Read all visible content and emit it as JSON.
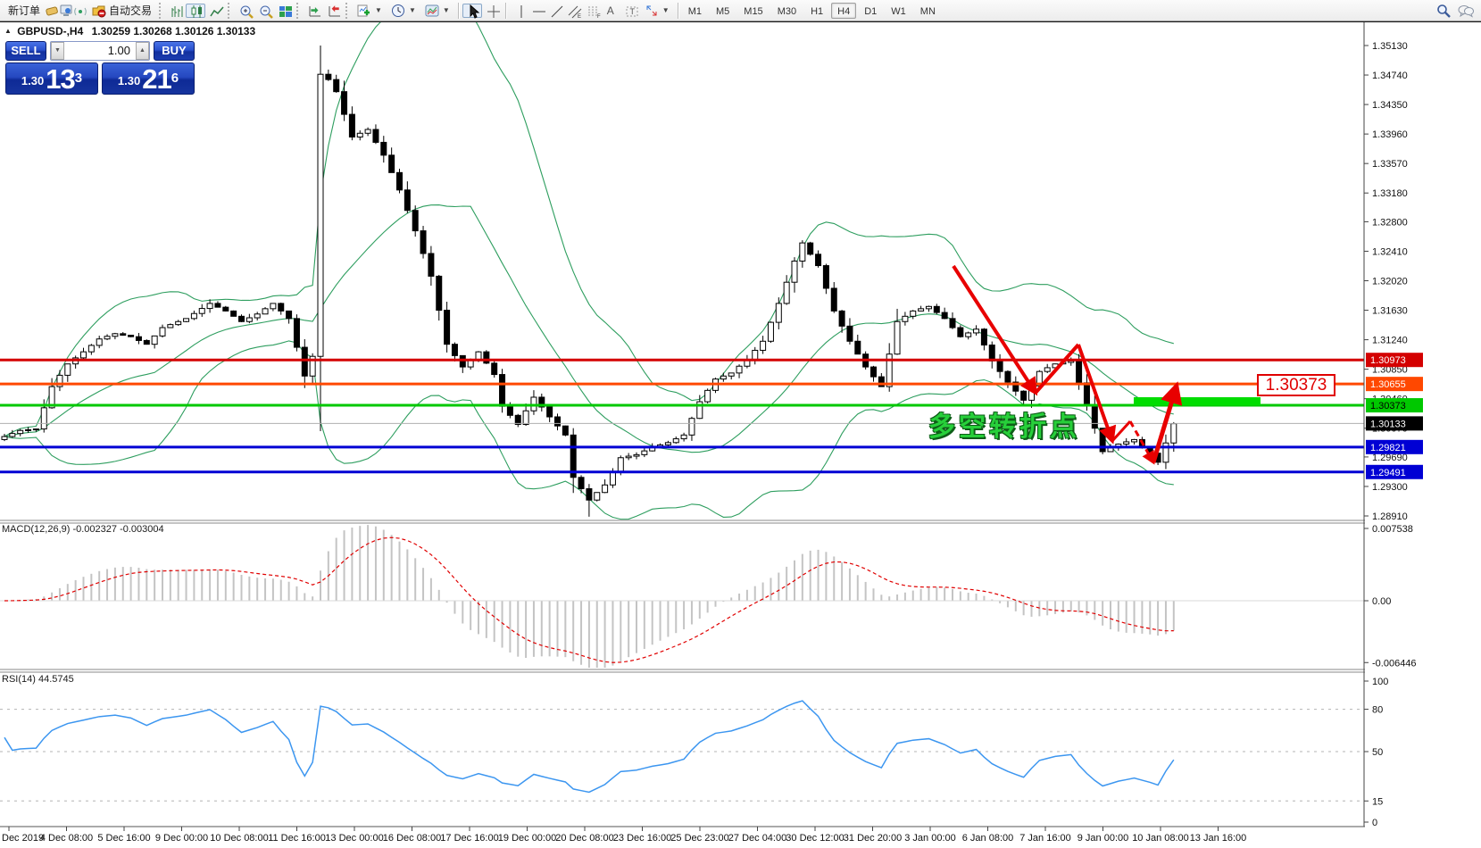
{
  "toolbar": {
    "new_order_label": "新订单",
    "auto_trading_label": "自动交易",
    "icons": [
      "new-order",
      "eraser",
      "profile-terminal",
      "signal",
      "auto-trading",
      "bar-chart",
      "candlestick-chart",
      "line-chart",
      "zoom-in",
      "zoom-out",
      "tile-windows",
      "auto-scroll",
      "chart-shift",
      "add-indicator",
      "period",
      "template",
      "cursor",
      "crosshair",
      "vertical-line",
      "horizontal-line",
      "trendline",
      "equidistant-channel",
      "fibonacci",
      "text",
      "text-label",
      "arrows",
      "search",
      "chat"
    ],
    "timeframes": [
      "M1",
      "M5",
      "M15",
      "M30",
      "H1",
      "H4",
      "D1",
      "W1",
      "MN"
    ],
    "active_timeframe": "H4"
  },
  "chart_header": {
    "symbol_title": "GBPUSD-,H4",
    "ohlc": "1.30259 1.30268 1.30126 1.30133"
  },
  "trade_panel": {
    "sell_label": "SELL",
    "buy_label": "BUY",
    "volume": "1.00",
    "sell_price_small": "1.30",
    "sell_price_big": "13",
    "sell_price_sup": "3",
    "buy_price_small": "1.30",
    "buy_price_big": "21",
    "buy_price_sup": "6"
  },
  "indicator_labels": {
    "macd": "MACD(12,26,9) -0.002327 -0.003004",
    "rsi": "RSI(14) 44.5745"
  },
  "annotations": {
    "turning_point_text": "多空转折点",
    "price_callout": "1.30373"
  },
  "axes": {
    "price_ticks": [
      "1.35130",
      "1.34740",
      "1.34350",
      "1.33960",
      "1.33570",
      "1.33180",
      "1.32800",
      "1.32410",
      "1.32020",
      "1.31630",
      "1.31240",
      "1.30850",
      "1.30460",
      "1.30070",
      "1.29690",
      "1.29300",
      "1.28910"
    ],
    "macd_ticks": [
      {
        "v": 0.007538,
        "label": "0.007538"
      },
      {
        "v": 0,
        "label": "0.00"
      },
      {
        "v": -0.006446,
        "label": "-0.006446"
      }
    ],
    "rsi_ticks": [
      {
        "v": 100,
        "label": "100",
        "dashed": false
      },
      {
        "v": 80,
        "label": "80",
        "dashed": true
      },
      {
        "v": 50,
        "label": "50",
        "dashed": true
      },
      {
        "v": 15,
        "label": "15",
        "dashed": true
      },
      {
        "v": 0,
        "label": "0",
        "dashed": false
      }
    ],
    "date_labels": [
      "Dec 2019",
      "4 Dec 08:00",
      "5 Dec 16:00",
      "9 Dec 00:00",
      "10 Dec 08:00",
      "11 Dec 16:00",
      "13 Dec 00:00",
      "16 Dec 08:00",
      "17 Dec 16:00",
      "19 Dec 00:00",
      "20 Dec 08:00",
      "23 Dec 16:00",
      "25 Dec 23:00",
      "27 Dec 04:00",
      "30 Dec 12:00",
      "31 Dec 20:00",
      "3 Jan 00:00",
      "6 Jan 08:00",
      "7 Jan 16:00",
      "9 Jan 00:00",
      "10 Jan 08:00",
      "13 Jan 16:00"
    ]
  },
  "chart_data": {
    "type": "candlestick",
    "symbol": "GBPUSD",
    "timeframe": "H4",
    "ylim": [
      1.2891,
      1.3513
    ],
    "bars_total": 149,
    "price_path_anchors": [
      [
        0,
        1.2996
      ],
      [
        2,
        1.3004
      ],
      [
        4,
        1.3006
      ],
      [
        6,
        1.3062
      ],
      [
        8,
        1.3092
      ],
      [
        10,
        1.3108
      ],
      [
        12,
        1.3125
      ],
      [
        14,
        1.3132
      ],
      [
        16,
        1.3128
      ],
      [
        18,
        1.3118
      ],
      [
        20,
        1.314
      ],
      [
        23,
        1.3152
      ],
      [
        26,
        1.3172
      ],
      [
        28,
        1.3162
      ],
      [
        30,
        1.3148
      ],
      [
        32,
        1.3158
      ],
      [
        34,
        1.3172
      ],
      [
        36,
        1.3152
      ],
      [
        38,
        1.3076
      ],
      [
        39,
        1.3102
      ],
      [
        40,
        1.3475,
        1.3513
      ],
      [
        41,
        1.3468
      ],
      [
        42,
        1.3452
      ],
      [
        44,
        1.3392
      ],
      [
        46,
        1.3402
      ],
      [
        48,
        1.3368
      ],
      [
        50,
        1.3322
      ],
      [
        52,
        1.3268
      ],
      [
        54,
        1.3208
      ],
      [
        56,
        1.3118
      ],
      [
        58,
        1.3088
      ],
      [
        60,
        1.3108
      ],
      [
        62,
        1.3078
      ],
      [
        63,
        1.3036
      ],
      [
        65,
        1.3012
      ],
      [
        67,
        1.3048
      ],
      [
        69,
        1.3022
      ],
      [
        71,
        1.2998
      ],
      [
        72,
        1.2942
      ],
      [
        74,
        1.2912,
        null,
        1.289
      ],
      [
        76,
        1.2932
      ],
      [
        78,
        1.2968
      ],
      [
        80,
        1.2972
      ],
      [
        82,
        1.2982
      ],
      [
        84,
        1.2988
      ],
      [
        86,
        1.2998
      ],
      [
        88,
        1.3042
      ],
      [
        90,
        1.3072
      ],
      [
        92,
        1.308
      ],
      [
        94,
        1.3098
      ],
      [
        96,
        1.3122
      ],
      [
        98,
        1.3172
      ],
      [
        100,
        1.3228
      ],
      [
        101,
        1.3252
      ],
      [
        103,
        1.3222
      ],
      [
        105,
        1.3162
      ],
      [
        107,
        1.3122
      ],
      [
        109,
        1.3088
      ],
      [
        111,
        1.3062
      ],
      [
        113,
        1.3148
      ],
      [
        115,
        1.3162
      ],
      [
        117,
        1.3168
      ],
      [
        119,
        1.3152
      ],
      [
        121,
        1.3128
      ],
      [
        123,
        1.3138
      ],
      [
        125,
        1.3096
      ],
      [
        127,
        1.3068
      ],
      [
        129,
        1.3044
      ],
      [
        131,
        1.3082
      ],
      [
        133,
        1.3092
      ],
      [
        135,
        1.3096
      ],
      [
        137,
        1.3038
      ],
      [
        139,
        1.2976
      ],
      [
        141,
        1.2986
      ],
      [
        143,
        1.2992
      ],
      [
        145,
        1.2974
      ],
      [
        146,
        1.2962
      ],
      [
        148,
        1.3013
      ]
    ],
    "indicators": {
      "bollinger": {
        "period": 20,
        "deviation": 2,
        "color": "#2e9e5f"
      },
      "macd": {
        "fast": 12,
        "slow": 26,
        "signal": 9,
        "value": -0.002327,
        "signal_value": -0.003004,
        "hist_color": "#c4c4c4",
        "signal_color": "#e00000",
        "range": [
          -0.006446,
          0.007538
        ]
      },
      "rsi": {
        "period": 14,
        "value": 44.5745,
        "color": "#3c96f0",
        "levels": [
          80,
          50,
          15
        ],
        "range": [
          0,
          100
        ]
      }
    },
    "hlines": [
      {
        "price": 1.30973,
        "label": "1.30973",
        "color": "#d40000",
        "text_color": "#ffffff",
        "width": 3
      },
      {
        "price": 1.30655,
        "label": "1.30655",
        "color": "#ff4800",
        "text_color": "#ffffff",
        "width": 3
      },
      {
        "price": 1.30373,
        "label": "1.30373",
        "color": "#00c800",
        "text_color": "#000000",
        "width": 3
      },
      {
        "price": 1.29821,
        "label": "1.29821",
        "color": "#0000d4",
        "text_color": "#ffffff",
        "width": 3
      },
      {
        "price": 1.29491,
        "label": "1.29491",
        "color": "#0000d4",
        "text_color": "#ffffff",
        "width": 3
      }
    ],
    "bid_marker": {
      "price": 1.30133,
      "label": "1.30133",
      "bg": "#000000",
      "text_color": "#ffffff",
      "line_color": "#b0b0b0"
    },
    "drawn_objects": {
      "supply_bar": {
        "x": 1270,
        "y": 420,
        "w": 142,
        "h": 9,
        "color": "#00dd00"
      },
      "trend_arrows": {
        "color": "#e80000",
        "segments": [
          {
            "pts": [
              [
                1068,
                273
              ],
              [
                1160,
                415
              ]
            ],
            "arrow": true,
            "w": 4,
            "dash": null
          },
          {
            "pts": [
              [
                1160,
                415
              ],
              [
                1208,
                361
              ]
            ],
            "arrow": false,
            "w": 4,
            "dash": null
          },
          {
            "pts": [
              [
                1208,
                361
              ],
              [
                1246,
                469
              ]
            ],
            "arrow": true,
            "w": 4,
            "dash": null
          },
          {
            "pts": [
              [
                1246,
                469
              ],
              [
                1266,
                447
              ]
            ],
            "arrow": false,
            "w": 3,
            "dash": null
          },
          {
            "pts": [
              [
                1266,
                447
              ],
              [
                1292,
                493
              ]
            ],
            "arrow": true,
            "w": 3,
            "dash": "7,5"
          },
          {
            "pts": [
              [
                1292,
                493
              ],
              [
                1318,
                407
              ]
            ],
            "arrow": true,
            "w": 5,
            "dash": null
          }
        ]
      }
    }
  }
}
